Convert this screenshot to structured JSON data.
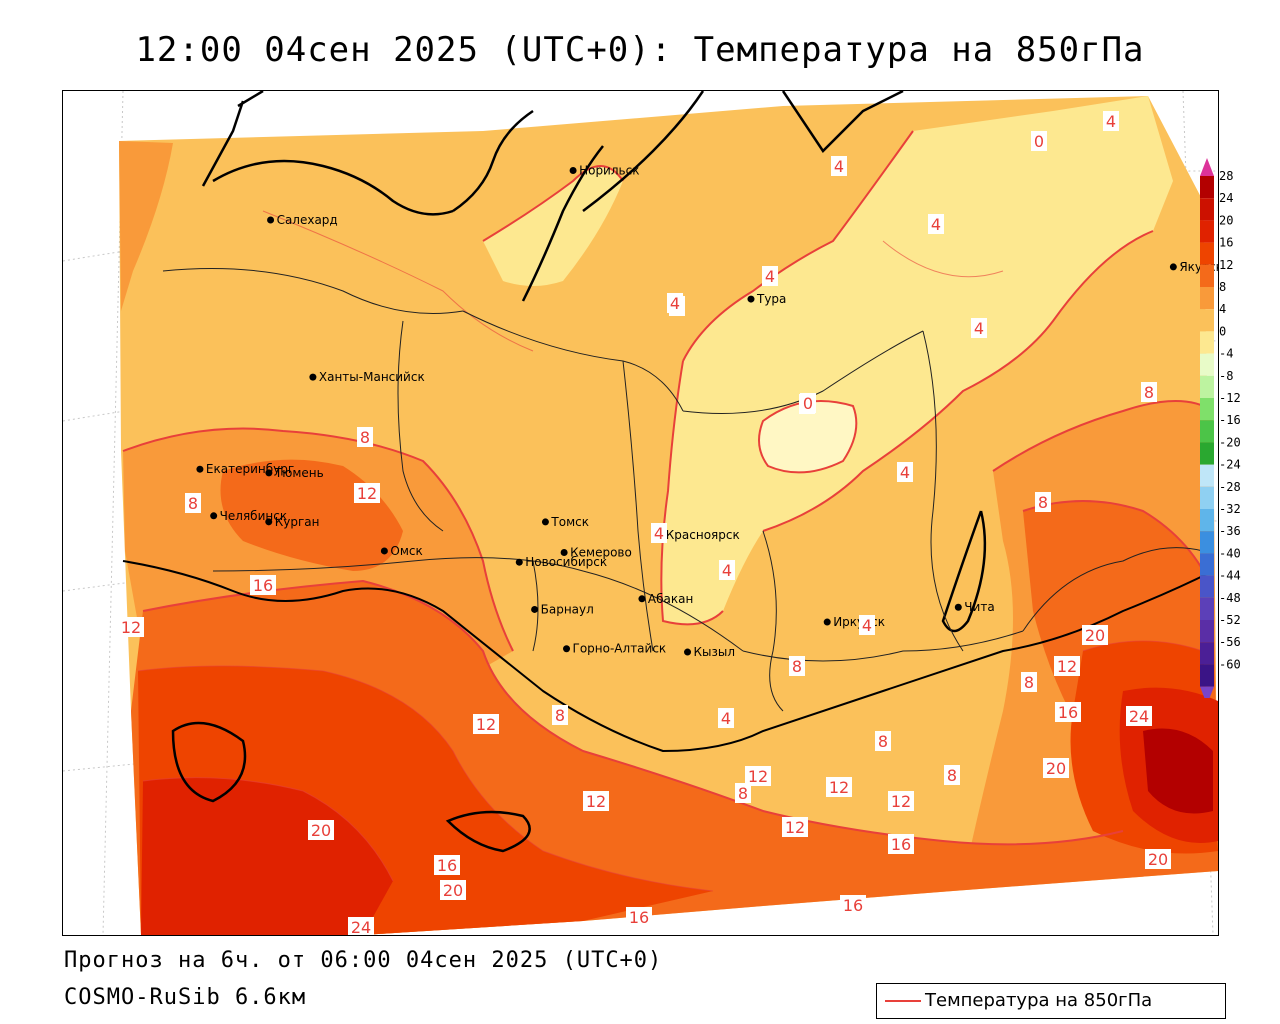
{
  "title": "12:00 04сен 2025 (UTC+0): Температура на 850гПа",
  "footer": {
    "forecast": "Прогноз на 6ч. от 06:00 04сен 2025 (UTC+0)",
    "model": "COSMO-RuSib 6.6км"
  },
  "legend": {
    "label": "Температура на 850гПа",
    "line_color": "#e8403a"
  },
  "colorbar": {
    "labels": [
      "28",
      "24",
      "20",
      "16",
      "12",
      "8",
      "4",
      "0",
      "-4",
      "-8",
      "-12",
      "-16",
      "-20",
      "-24",
      "-28",
      "-32",
      "-36",
      "-40",
      "-44",
      "-48",
      "-52",
      "-56",
      "-60"
    ],
    "colors": [
      "#b30000",
      "#cc1100",
      "#e02200",
      "#ee4400",
      "#f46a1a",
      "#f99a3a",
      "#fbc15a",
      "#fde890",
      "#e8fbc8",
      "#bdf3a0",
      "#7fe06a",
      "#4cc448",
      "#2aa830",
      "#bfe6f8",
      "#8fd0f2",
      "#5fb5ea",
      "#3b8fe0",
      "#3a6ed4",
      "#4a55c8",
      "#5c40b8",
      "#5a2ea6",
      "#4b1f96",
      "#3a1486"
    ],
    "top_arrow_color": "#dd3399",
    "bottom_arrow_color": "#7a44c8"
  },
  "cities": [
    {
      "name": "Норильск",
      "lon": 88.2,
      "lat": 69.3
    },
    {
      "name": "Якутск",
      "lon": 129.7,
      "lat": 62.0
    },
    {
      "name": "Салехард",
      "lon": 66.6,
      "lat": 66.5
    },
    {
      "name": "Тура",
      "lon": 100.2,
      "lat": 64.3
    },
    {
      "name": "Ханты-Мансийск",
      "lon": 69.0,
      "lat": 61.0
    },
    {
      "name": "Екатеринбург",
      "lon": 60.6,
      "lat": 56.8
    },
    {
      "name": "Тюмень",
      "lon": 65.5,
      "lat": 57.2
    },
    {
      "name": "Челябинск",
      "lon": 61.4,
      "lat": 55.2
    },
    {
      "name": "Курган",
      "lon": 65.3,
      "lat": 55.4
    },
    {
      "name": "Омск",
      "lon": 73.4,
      "lat": 55.0
    },
    {
      "name": "Новосибирск",
      "lon": 82.9,
      "lat": 55.0
    },
    {
      "name": "Томск",
      "lon": 84.9,
      "lat": 56.5
    },
    {
      "name": "Кемерово",
      "lon": 86.1,
      "lat": 55.4
    },
    {
      "name": "Красноярск",
      "lon": 92.9,
      "lat": 56.0
    },
    {
      "name": "Абакан",
      "lon": 91.4,
      "lat": 53.7
    },
    {
      "name": "Иркутск",
      "lon": 104.3,
      "lat": 52.3
    },
    {
      "name": "Чита",
      "lon": 113.5,
      "lat": 52.0
    },
    {
      "name": "Барнаул",
      "lon": 83.8,
      "lat": 53.3
    },
    {
      "name": "Горно-Алтайск",
      "lon": 85.9,
      "lat": 51.9
    },
    {
      "name": "Кызыл",
      "lon": 94.4,
      "lat": 51.7
    }
  ],
  "isotherm_labels": [
    "0",
    "4",
    "8",
    "12",
    "16",
    "20",
    "24"
  ],
  "colors": {
    "ocean": "#ffffff",
    "isoline": "#e8403a",
    "boundary": "#000000"
  }
}
